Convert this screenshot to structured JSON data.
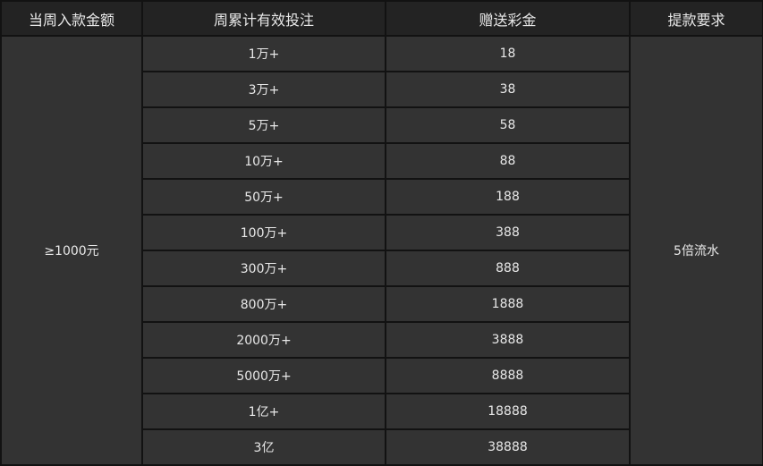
{
  "table": {
    "headers": [
      "当周入款金额",
      "周累计有效投注",
      "赠送彩金",
      "提款要求"
    ],
    "deposit": "≥1000元",
    "requirement": "5倍流水",
    "rows": [
      {
        "bet": "1万+",
        "bonus": "18"
      },
      {
        "bet": "3万+",
        "bonus": "38"
      },
      {
        "bet": "5万+",
        "bonus": "58"
      },
      {
        "bet": "10万+",
        "bonus": "88"
      },
      {
        "bet": "50万+",
        "bonus": "188"
      },
      {
        "bet": "100万+",
        "bonus": "388"
      },
      {
        "bet": "300万+",
        "bonus": "888"
      },
      {
        "bet": "800万+",
        "bonus": "1888"
      },
      {
        "bet": "2000万+",
        "bonus": "3888"
      },
      {
        "bet": "5000万+",
        "bonus": "8888"
      },
      {
        "bet": "1亿+",
        "bonus": "18888"
      },
      {
        "bet": "3亿",
        "bonus": "38888"
      }
    ]
  }
}
